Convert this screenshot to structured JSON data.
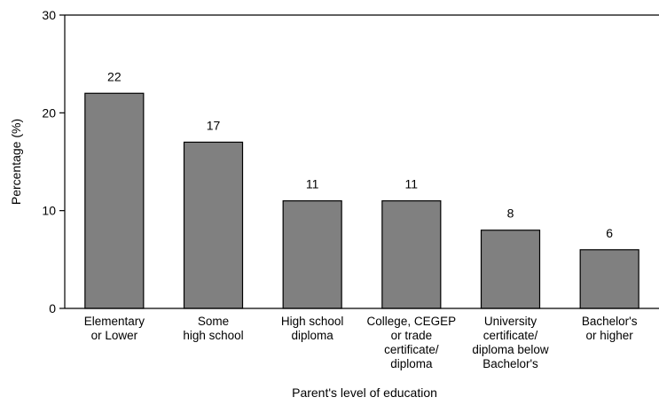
{
  "chart_data": {
    "type": "bar",
    "title": "",
    "xlabel": "Parent's level of education",
    "ylabel": "Percentage (%)",
    "ylim": [
      0,
      30
    ],
    "yticks": [
      0,
      10,
      20,
      30
    ],
    "categories": [
      [
        "Elementary",
        "or Lower"
      ],
      [
        "Some",
        "high school"
      ],
      [
        "High school",
        "diploma"
      ],
      [
        "College, CEGEP",
        "or trade",
        "certificate/",
        "diploma"
      ],
      [
        "University",
        "certificate/",
        "diploma below",
        "Bachelor's"
      ],
      [
        "Bachelor's",
        "or higher"
      ]
    ],
    "values": [
      22,
      17,
      11,
      11,
      8,
      6
    ],
    "data_labels": [
      "22",
      "17",
      "11",
      "11",
      "8",
      "6"
    ],
    "grid": false,
    "bar_color": "#808080",
    "bar_edge_color": "#000000"
  }
}
